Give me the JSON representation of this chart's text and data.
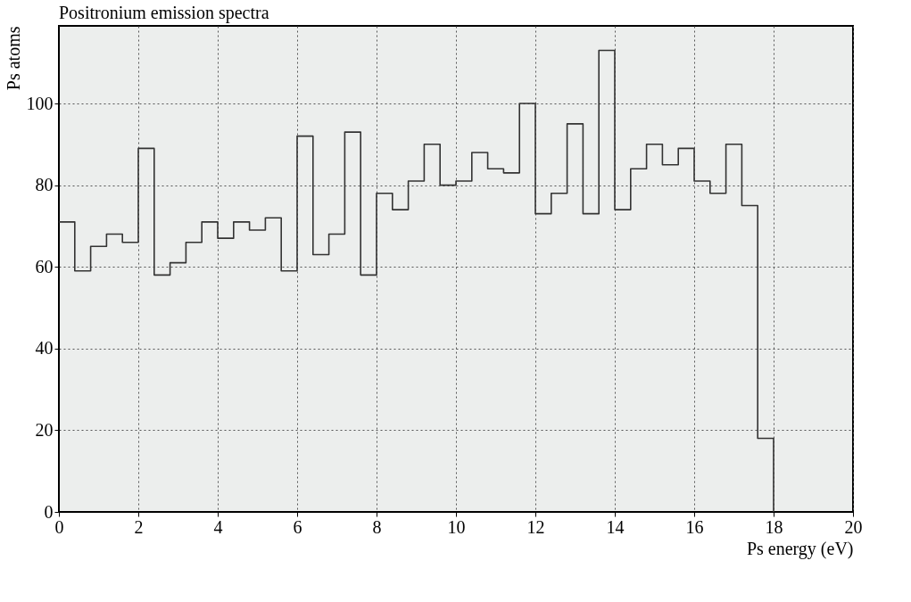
{
  "chart_data": {
    "type": "histogram",
    "title": "Positronium emission spectra",
    "xlabel": "Ps energy (eV)",
    "ylabel": "Ps atoms",
    "bins": [
      0,
      0.4,
      0.8,
      1.2,
      1.6,
      2.0,
      2.4,
      2.8,
      3.2,
      3.6,
      4.0,
      4.4,
      4.8,
      5.2,
      5.6,
      6.0,
      6.4,
      6.8,
      7.2,
      7.6,
      8.0,
      8.4,
      8.8,
      9.2,
      9.6,
      10.0,
      10.4,
      10.8,
      11.2,
      11.6,
      12.0,
      12.4,
      12.8,
      13.2,
      13.6,
      14.0,
      14.4,
      14.8,
      15.2,
      15.6,
      16.0,
      16.4,
      16.8,
      17.2,
      17.6,
      18.0
    ],
    "values": [
      71,
      59,
      65,
      68,
      66,
      89,
      58,
      61,
      66,
      71,
      67,
      71,
      69,
      72,
      59,
      92,
      63,
      68,
      93,
      58,
      78,
      74,
      81,
      90,
      80,
      81,
      88,
      84,
      83,
      100,
      73,
      78,
      95,
      73,
      113,
      74,
      84,
      90,
      85,
      89,
      81,
      78,
      90,
      75,
      18
    ],
    "color": "#333333",
    "xlim": [
      0,
      20
    ],
    "xticks": [
      0,
      2,
      4,
      6,
      8,
      10,
      12,
      14,
      16,
      18,
      20
    ],
    "ylim": [
      0,
      119
    ],
    "yticks": [
      0,
      20,
      40,
      60,
      80,
      100
    ],
    "grid": true
  }
}
